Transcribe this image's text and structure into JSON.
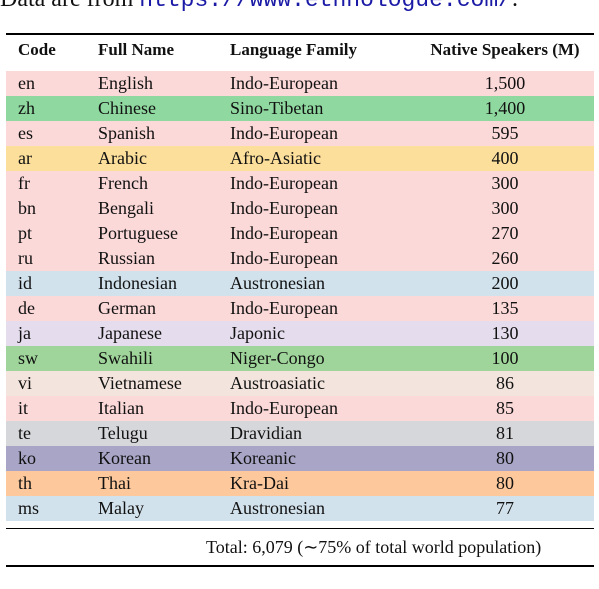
{
  "note": {
    "text": "Data are from ",
    "url": "https://www.ethnologue.com/",
    "end": "."
  },
  "table": {
    "header": [
      "Code",
      "Full Name",
      "Language Family",
      "Native Speakers (M)"
    ],
    "rows": [
      [
        "en",
        "English",
        "Indo-European",
        "1,500"
      ],
      [
        "zh",
        "Chinese",
        "Sino-Tibetan",
        "1,400"
      ],
      [
        "es",
        "Spanish",
        "Indo-European",
        "595"
      ],
      [
        "ar",
        "Arabic",
        "Afro-Asiatic",
        "400"
      ],
      [
        "fr",
        "French",
        "Indo-European",
        "300"
      ],
      [
        "bn",
        "Bengali",
        "Indo-European",
        "300"
      ],
      [
        "pt",
        "Portuguese",
        "Indo-European",
        "270"
      ],
      [
        "ru",
        "Russian",
        "Indo-European",
        "260"
      ],
      [
        "id",
        "Indonesian",
        "Austronesian",
        "200"
      ],
      [
        "de",
        "German",
        "Indo-European",
        "135"
      ],
      [
        "ja",
        "Japanese",
        "Japonic",
        "130"
      ],
      [
        "sw",
        "Swahili",
        "Niger-Congo",
        "100"
      ],
      [
        "vi",
        "Vietnamese",
        "Austroasiatic",
        "86"
      ],
      [
        "it",
        "Italian",
        "Indo-European",
        "85"
      ],
      [
        "te",
        "Telugu",
        "Dravidian",
        "81"
      ],
      [
        "ko",
        "Korean",
        "Koreanic",
        "80"
      ],
      [
        "th",
        "Thai",
        "Kra-Dai",
        "80"
      ],
      [
        "ms",
        "Malay",
        "Austronesian",
        "77"
      ]
    ],
    "total": "Total: 6,079 (∼75% of total world population)"
  }
}
